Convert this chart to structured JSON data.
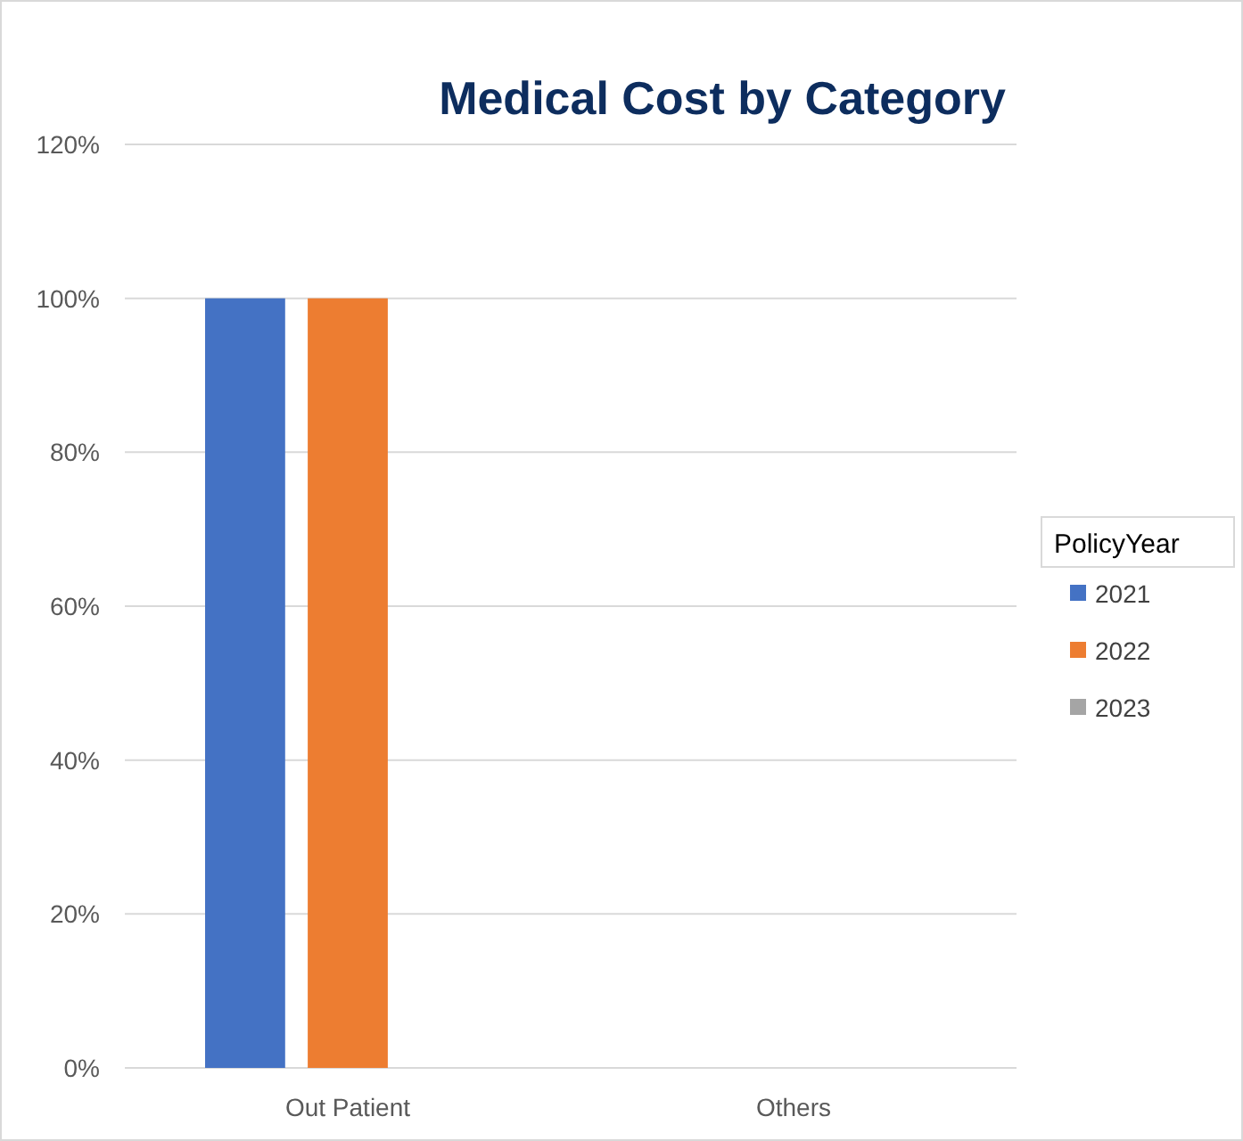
{
  "chart_data": {
    "type": "bar",
    "title": "Medical Cost by Category",
    "legend_title": "PolicyYear",
    "categories": [
      "Out Patient",
      "Others"
    ],
    "series": [
      {
        "name": "2021",
        "color": "#4472c4",
        "values": [
          100,
          0
        ]
      },
      {
        "name": "2022",
        "color": "#ed7d31",
        "values": [
          100,
          0
        ]
      },
      {
        "name": "2023",
        "color": "#a5a5a5",
        "values": [
          0,
          0
        ]
      }
    ],
    "ylim": [
      0,
      120
    ],
    "yticks": [
      {
        "value": 0,
        "label": "0%"
      },
      {
        "value": 20,
        "label": "20%"
      },
      {
        "value": 40,
        "label": "40%"
      },
      {
        "value": 60,
        "label": "60%"
      },
      {
        "value": 80,
        "label": "80%"
      },
      {
        "value": 100,
        "label": "100%"
      },
      {
        "value": 120,
        "label": "120%"
      }
    ],
    "grid": "y",
    "legend": "right"
  }
}
